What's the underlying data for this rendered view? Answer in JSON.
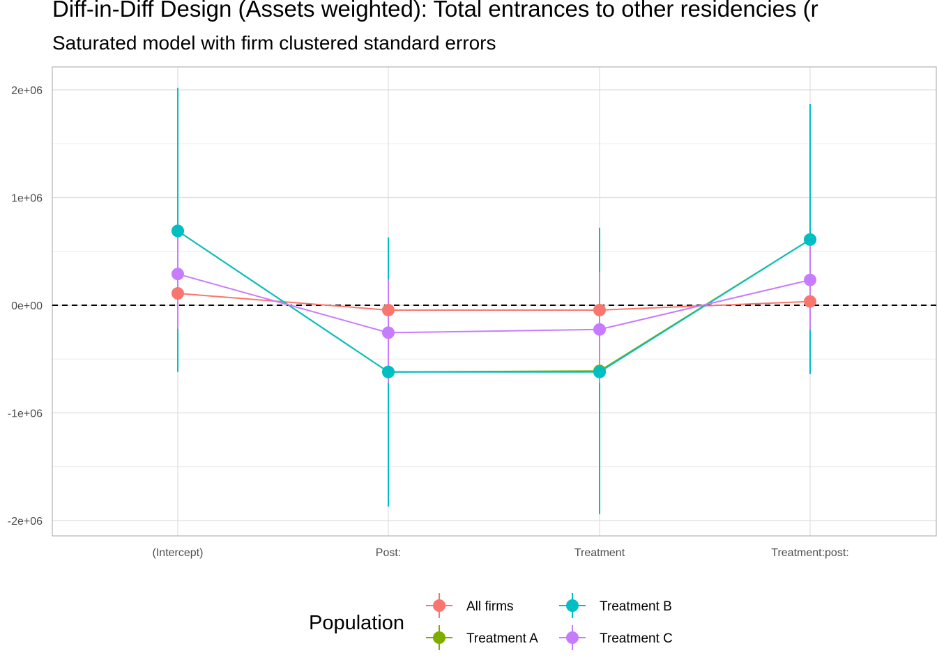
{
  "chart_data": {
    "type": "scatter",
    "title": "Diff-in-Diff Design (Assets weighted): Total entrances to other residencies (r",
    "subtitle": "Saturated model with firm clustered standard errors",
    "xlabel": "",
    "ylabel": "",
    "categories": [
      "(Intercept)",
      "Post:",
      "Treatment",
      "Treatment:post:"
    ],
    "ylim": [
      -2140000,
      2220000
    ],
    "yticks": [
      {
        "value": 2000000,
        "label": "2e+06"
      },
      {
        "value": 1000000,
        "label": "1e+06"
      },
      {
        "value": 0,
        "label": "0e+00"
      },
      {
        "value": -1000000,
        "label": "-1e+06"
      },
      {
        "value": -2000000,
        "label": "-2e+06"
      }
    ],
    "reference_line": 0,
    "grid": true,
    "legend": {
      "title": "Population",
      "position": "bottom"
    },
    "series": [
      {
        "name": "All firms",
        "color": "#F8766D",
        "values": [
          110000,
          -45000,
          -45000,
          35000
        ],
        "lower": [
          110000,
          -45000,
          -45000,
          35000
        ],
        "upper": [
          110000,
          -45000,
          -45000,
          35000
        ]
      },
      {
        "name": "Treatment A",
        "color": "#7CAE00",
        "values": [
          690000,
          -620000,
          -610000,
          610000
        ],
        "lower": [
          690000,
          -620000,
          -610000,
          610000
        ],
        "upper": [
          690000,
          -620000,
          -610000,
          610000
        ]
      },
      {
        "name": "Treatment B",
        "color": "#00BFC4",
        "values": [
          690000,
          -620000,
          -620000,
          610000
        ],
        "lower": [
          -620000,
          -1870000,
          -1940000,
          -640000
        ],
        "upper": [
          2020000,
          630000,
          720000,
          1870000
        ]
      },
      {
        "name": "Treatment C",
        "color": "#C77CFF",
        "values": [
          290000,
          -255000,
          -225000,
          235000
        ],
        "lower": [
          -220000,
          -720000,
          -720000,
          -230000
        ],
        "upper": [
          680000,
          240000,
          310000,
          650000
        ]
      }
    ]
  }
}
